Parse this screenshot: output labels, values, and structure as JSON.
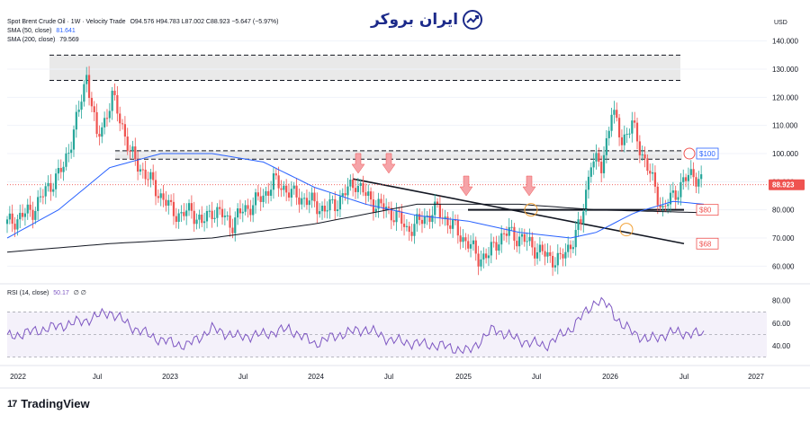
{
  "header": {
    "symbol_line": "Spot Brent Crude Oil · 1W · Velocity Trade",
    "ohlc": "O94.576  H94.783  L87.002  C88.923  −5.647 (−5.97%)",
    "sma50_label": "SMA (50, close)",
    "sma50_value": "81.641",
    "sma200_label": "SMA (200, close)",
    "sma200_value": "79.569",
    "rsi_label": "RSI (14, close)",
    "rsi_value": "50.17",
    "rsi_extra": "∅  ∅"
  },
  "logo": {
    "text": "ایران بروکر",
    "icon": "chart-trend-icon"
  },
  "footer": {
    "brand": "TradingView",
    "mark": "17"
  },
  "colors": {
    "up": "#26a69a",
    "down": "#ef5350",
    "sma50": "#2962ff",
    "sma200": "#131722",
    "rsi": "#7e57c2",
    "price_tag": "#ef5350"
  },
  "chart_data": {
    "type": "candlestick",
    "currency": "USD",
    "y_ticks": [
      "140.000",
      "130.000",
      "120.000",
      "110.000",
      "100.000",
      "90.000",
      "80.000",
      "70.000",
      "60.000"
    ],
    "ylim": [
      55,
      145
    ],
    "x_ticks": [
      "2022",
      "Jul",
      "2023",
      "Jul",
      "2024",
      "Jul",
      "2025",
      "Jul",
      "2026",
      "Jul",
      "2027"
    ],
    "last_price": "88.923",
    "level_tags": [
      "$100",
      "$80",
      "$68"
    ],
    "resistance_zones": [
      [
        126,
        135
      ],
      [
        98,
        101
      ]
    ],
    "support_line": 80,
    "price_path": [
      [
        0,
        75
      ],
      [
        10,
        80
      ],
      [
        16,
        88
      ],
      [
        22,
        95
      ],
      [
        25,
        105
      ],
      [
        28,
        115
      ],
      [
        31,
        128
      ],
      [
        33,
        118
      ],
      [
        35,
        105
      ],
      [
        38,
        112
      ],
      [
        41,
        120
      ],
      [
        45,
        110
      ],
      [
        48,
        100
      ],
      [
        52,
        95
      ],
      [
        56,
        90
      ],
      [
        60,
        85
      ],
      [
        64,
        80
      ],
      [
        68,
        78
      ],
      [
        72,
        80
      ],
      [
        76,
        75
      ],
      [
        80,
        80
      ],
      [
        84,
        78
      ],
      [
        88,
        75
      ],
      [
        92,
        80
      ],
      [
        96,
        82
      ],
      [
        100,
        85
      ],
      [
        104,
        90
      ],
      [
        108,
        88
      ],
      [
        112,
        85
      ],
      [
        116,
        84
      ],
      [
        120,
        82
      ],
      [
        124,
        80
      ],
      [
        128,
        82
      ],
      [
        132,
        86
      ],
      [
        136,
        90
      ],
      [
        140,
        85
      ],
      [
        144,
        82
      ],
      [
        148,
        80
      ],
      [
        152,
        78
      ],
      [
        156,
        73
      ],
      [
        160,
        75
      ],
      [
        164,
        78
      ],
      [
        168,
        80
      ],
      [
        172,
        76
      ],
      [
        176,
        72
      ],
      [
        180,
        68
      ],
      [
        184,
        63
      ],
      [
        188,
        64
      ],
      [
        192,
        70
      ],
      [
        196,
        72
      ],
      [
        200,
        70
      ],
      [
        204,
        68
      ],
      [
        208,
        65
      ],
      [
        212,
        63
      ],
      [
        216,
        62
      ],
      [
        220,
        68
      ],
      [
        224,
        75
      ],
      [
        228,
        98
      ],
      [
        232,
        95
      ],
      [
        236,
        115
      ],
      [
        240,
        105
      ],
      [
        244,
        110
      ],
      [
        248,
        100
      ],
      [
        252,
        90
      ],
      [
        256,
        80
      ],
      [
        260,
        85
      ],
      [
        264,
        90
      ],
      [
        268,
        93
      ],
      [
        272,
        89
      ]
    ],
    "sma50_path": [
      [
        0,
        70
      ],
      [
        20,
        80
      ],
      [
        40,
        95
      ],
      [
        60,
        100
      ],
      [
        80,
        100
      ],
      [
        100,
        97
      ],
      [
        120,
        88
      ],
      [
        140,
        82
      ],
      [
        160,
        78
      ],
      [
        180,
        76
      ],
      [
        200,
        72
      ],
      [
        220,
        70
      ],
      [
        230,
        72
      ],
      [
        245,
        79
      ],
      [
        260,
        83
      ],
      [
        272,
        82
      ]
    ],
    "sma200_path": [
      [
        0,
        65
      ],
      [
        40,
        68
      ],
      [
        80,
        70
      ],
      [
        120,
        75
      ],
      [
        160,
        82
      ],
      [
        200,
        82
      ],
      [
        230,
        80
      ],
      [
        272,
        79
      ]
    ],
    "rsi": {
      "y_ticks": [
        "80.00",
        "60.00",
        "40.00"
      ],
      "ylim": [
        25,
        90
      ],
      "bands": [
        30,
        70
      ],
      "mid": 50,
      "series_path": [
        [
          0,
          48
        ],
        [
          15,
          55
        ],
        [
          30,
          62
        ],
        [
          40,
          70
        ],
        [
          50,
          55
        ],
        [
          60,
          45
        ],
        [
          70,
          40
        ],
        [
          80,
          55
        ],
        [
          90,
          48
        ],
        [
          100,
          50
        ],
        [
          110,
          55
        ],
        [
          120,
          42
        ],
        [
          130,
          50
        ],
        [
          140,
          55
        ],
        [
          150,
          45
        ],
        [
          160,
          42
        ],
        [
          170,
          40
        ],
        [
          180,
          35
        ],
        [
          190,
          55
        ],
        [
          200,
          45
        ],
        [
          210,
          40
        ],
        [
          220,
          55
        ],
        [
          230,
          80
        ],
        [
          235,
          75
        ],
        [
          240,
          58
        ],
        [
          250,
          45
        ],
        [
          260,
          52
        ],
        [
          272,
          50
        ]
      ]
    }
  }
}
